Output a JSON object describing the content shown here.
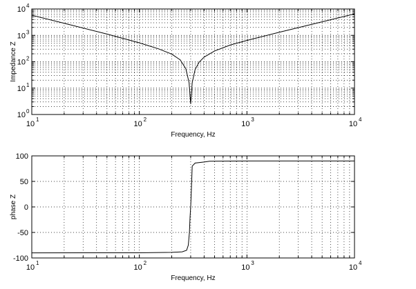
{
  "chart_data": [
    {
      "type": "line",
      "xscale": "log",
      "yscale": "log",
      "xlabel": "Frequency, Hz",
      "ylabel": "Impedance Z",
      "xlim": [
        10,
        10000
      ],
      "ylim": [
        1,
        10000
      ],
      "grid": true,
      "xticks": [
        {
          "base": "10",
          "exp": "1"
        },
        {
          "base": "10",
          "exp": "2"
        },
        {
          "base": "10",
          "exp": "3"
        },
        {
          "base": "10",
          "exp": "4"
        }
      ],
      "yticks": [
        {
          "base": "10",
          "exp": "0"
        },
        {
          "base": "10",
          "exp": "1"
        },
        {
          "base": "10",
          "exp": "2"
        },
        {
          "base": "10",
          "exp": "3"
        },
        {
          "base": "10",
          "exp": "4"
        }
      ],
      "series": [
        {
          "x": [
            10,
            20,
            50,
            100,
            150,
            200,
            240,
            270,
            290,
            300,
            310,
            330,
            360,
            400,
            500,
            700,
            1000,
            2000,
            5000,
            10000
          ],
          "y": [
            5800,
            2870,
            1120,
            520,
            310,
            195,
            117,
            55,
            16,
            2.5,
            16,
            51,
            97,
            150,
            255,
            430,
            640,
            1310,
            3250,
            6500
          ]
        }
      ]
    },
    {
      "type": "line",
      "xscale": "log",
      "xlabel": "Frequency, Hz",
      "ylabel": "phase Z",
      "xlim": [
        10,
        10000
      ],
      "ylim": [
        -100,
        100
      ],
      "grid": true,
      "xticks": [
        {
          "base": "10",
          "exp": "1"
        },
        {
          "base": "10",
          "exp": "2"
        },
        {
          "base": "10",
          "exp": "3"
        },
        {
          "base": "10",
          "exp": "4"
        }
      ],
      "yticks": [
        "-100",
        "-50",
        "0",
        "50",
        "100"
      ],
      "series": [
        {
          "x": [
            10,
            100,
            200,
            250,
            275,
            285,
            292,
            296,
            300,
            304,
            310,
            330,
            400,
            450,
            1000,
            10000
          ],
          "y": [
            -90,
            -89.8,
            -89,
            -88,
            -85,
            -75,
            -50,
            -20,
            0,
            30,
            80,
            86,
            88,
            89.5,
            90,
            90
          ]
        }
      ]
    }
  ]
}
